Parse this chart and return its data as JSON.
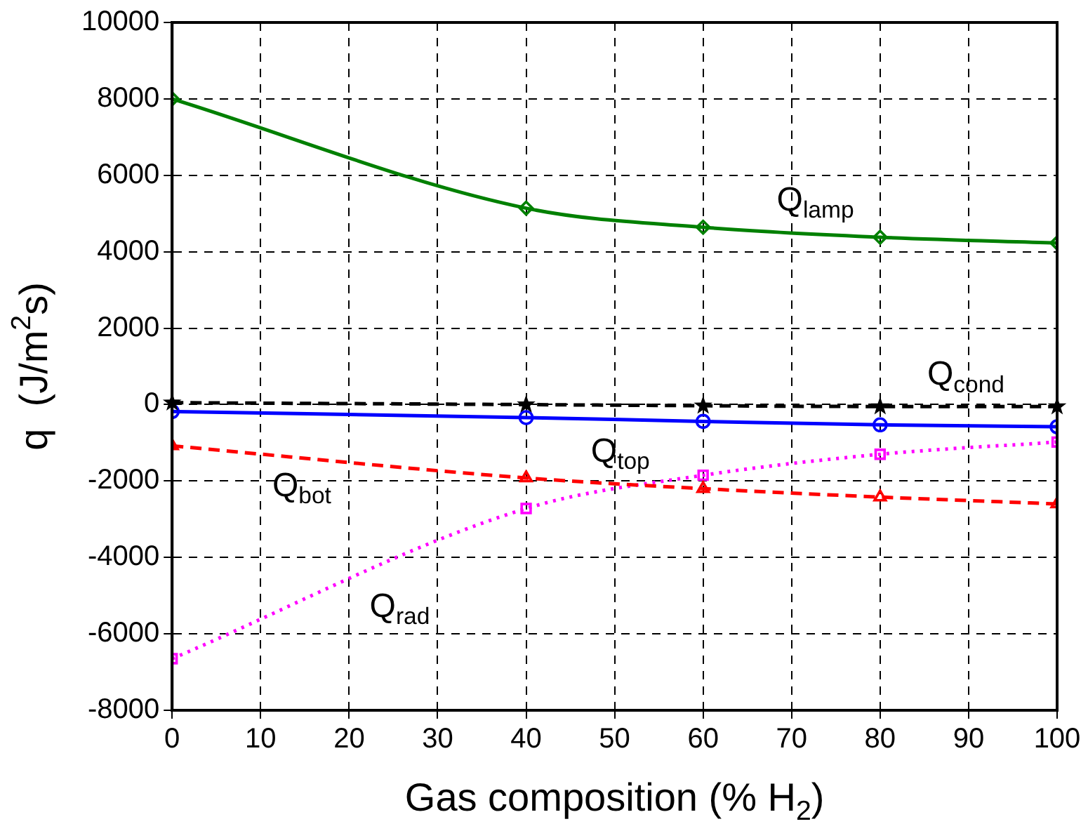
{
  "chart_data": {
    "type": "line",
    "xlabel": "Gas composition (% H$_{2}$)",
    "ylabel": "q  (J/m$^{2}$s)",
    "x": [
      0,
      40,
      60,
      80,
      100
    ],
    "series": [
      {
        "color": "#008000",
        "values": [
          8000,
          5140,
          4640,
          4380,
          4230
        ],
        "marker": "diamond",
        "line_style": "solid"
      },
      {
        "color": "#000000",
        "values": [
          50,
          0,
          -30,
          -50,
          -50
        ],
        "marker": "star",
        "line_style": "dashed"
      },
      {
        "color": "#0000ff",
        "values": [
          -180,
          -340,
          -440,
          -530,
          -580
        ],
        "marker": "circle",
        "line_style": "solid"
      },
      {
        "color": "#ff0000",
        "values": [
          -1080,
          -1920,
          -2200,
          -2420,
          -2600
        ],
        "marker": "triangle",
        "line_style": "dashed"
      },
      {
        "color": "#ff00ff",
        "values": [
          -6650,
          -2720,
          -1850,
          -1300,
          -980
        ],
        "marker": "square",
        "line_style": "dotted"
      }
    ],
    "xlim": [
      0,
      100
    ],
    "xticks": [
      0,
      10,
      20,
      30,
      40,
      50,
      60,
      70,
      80,
      90,
      100
    ],
    "ylim": [
      -8000,
      10000
    ],
    "yticks": [
      -8000,
      -6000,
      -4000,
      -2000,
      0,
      2000,
      4000,
      6000,
      8000,
      10000
    ],
    "grid": true,
    "legend": false,
    "annotations": [
      {
        "text": "Q$_{lamp}$",
        "x": 68,
        "y": 4520
      },
      {
        "text": "Q$_{cond}$",
        "x": 85,
        "y": -50
      },
      {
        "text": "Q$_{top}$",
        "x": 47,
        "y": -370
      },
      {
        "text": "Q$_{bot}$",
        "x": 11,
        "y": -1270
      },
      {
        "text": "Q$_{rad}$",
        "x": 22,
        "y": -4430
      }
    ]
  }
}
